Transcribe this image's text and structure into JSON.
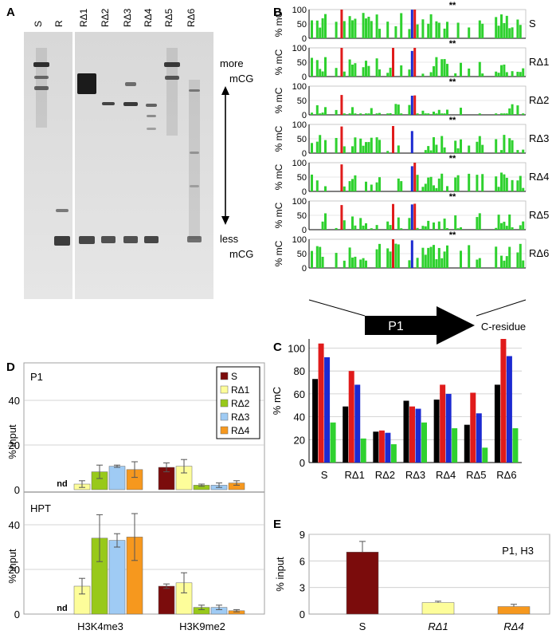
{
  "panel_labels": {
    "a": "A",
    "b": "B",
    "c": "C",
    "d": "D",
    "e": "E"
  },
  "gel": {
    "lanes": [
      "S",
      "R",
      "RΔ1",
      "RΔ2",
      "RΔ3",
      "RΔ4",
      "RΔ5",
      "RΔ6"
    ],
    "label_more": "more",
    "label_more_sub": "mCG",
    "label_less": "less",
    "label_less_sub": "mCG"
  },
  "methylation_profiles": {
    "ytick_labels": [
      "100",
      "50",
      "0"
    ],
    "ylabel": "% mC",
    "marker": "**",
    "rows": [
      "S",
      "RΔ1",
      "RΔ2",
      "RΔ3",
      "RΔ4",
      "RΔ5",
      "RΔ6"
    ],
    "promoter_label": "P1",
    "xlabel": "C-residue",
    "colors": {
      "CG": "#e01b1b",
      "CHG": "#1c2ad1",
      "CHH": "#2fd12f"
    }
  },
  "chart_data": [
    {
      "id": "C",
      "type": "bar",
      "categories": [
        "S",
        "RΔ1",
        "RΔ2",
        "RΔ3",
        "RΔ4",
        "RΔ5",
        "RΔ6"
      ],
      "series": [
        {
          "color": "#000000",
          "values": [
            73,
            49,
            27,
            54,
            55,
            33,
            68
          ]
        },
        {
          "color": "#e01b1b",
          "values": [
            104,
            80,
            28,
            49,
            68,
            61,
            108
          ]
        },
        {
          "color": "#1c2ad1",
          "values": [
            92,
            68,
            26,
            47,
            60,
            43,
            93
          ]
        },
        {
          "color": "#2fd12f",
          "values": [
            35,
            21,
            16,
            35,
            30,
            13,
            30
          ]
        }
      ],
      "ylabel": "% mC",
      "ylim": [
        0,
        108
      ],
      "yticks": [
        0,
        20,
        40,
        60,
        80,
        100
      ],
      "grid": true
    },
    {
      "id": "D-P1",
      "type": "bar",
      "panel_title": "P1",
      "categories": [
        "H3K4me3",
        "H3K9me2"
      ],
      "series": [
        {
          "name": "S",
          "color": "#7b0c0c",
          "values": [
            0,
            10
          ],
          "errors": [
            0,
            2
          ]
        },
        {
          "name": "RΔ1",
          "color": "#fdfd9a",
          "values": [
            2.5,
            10.5
          ],
          "errors": [
            1.5,
            3
          ]
        },
        {
          "name": "RΔ2",
          "color": "#98c91a",
          "values": [
            8,
            2
          ],
          "errors": [
            3,
            0.5
          ]
        },
        {
          "name": "RΔ3",
          "color": "#9fcbf4",
          "values": [
            10.5,
            2
          ],
          "errors": [
            0.5,
            1
          ]
        },
        {
          "name": "RΔ4",
          "color": "#f6981e",
          "values": [
            9,
            3
          ],
          "errors": [
            3.5,
            1
          ]
        }
      ],
      "annotation": "nd",
      "ylabel": "% input",
      "ylim": [
        0,
        50
      ],
      "yticks": [
        0,
        20,
        40
      ],
      "grid": true,
      "legend": "top-right"
    },
    {
      "id": "D-HPT",
      "type": "bar",
      "panel_title": "HPT",
      "categories": [
        "H3K4me3",
        "H3K9me2"
      ],
      "series": [
        {
          "name": "S",
          "color": "#7b0c0c",
          "values": [
            0,
            12.5
          ],
          "errors": [
            0,
            1
          ]
        },
        {
          "name": "RΔ1",
          "color": "#fdfd9a",
          "values": [
            12.5,
            14
          ],
          "errors": [
            3.5,
            4.5
          ]
        },
        {
          "name": "RΔ2",
          "color": "#98c91a",
          "values": [
            34,
            3
          ],
          "errors": [
            10.5,
            1
          ]
        },
        {
          "name": "RΔ3",
          "color": "#9fcbf4",
          "values": [
            33,
            3
          ],
          "errors": [
            3,
            1
          ]
        },
        {
          "name": "RΔ4",
          "color": "#f6981e",
          "values": [
            34.5,
            1.5
          ],
          "errors": [
            10.5,
            0.5
          ]
        }
      ],
      "annotation": "nd",
      "ylabel": "% input",
      "ylim": [
        0,
        50
      ],
      "yticks": [
        0,
        20,
        40
      ],
      "grid": true
    },
    {
      "id": "E",
      "type": "bar",
      "panel_title": "P1, H3",
      "categories": [
        "S",
        "RΔ1",
        "RΔ4"
      ],
      "colors": [
        "#7b0c0c",
        "#fdfd9a",
        "#f6981e"
      ],
      "values": [
        7.0,
        1.3,
        0.85
      ],
      "errors": [
        1.2,
        0.15,
        0.25
      ],
      "ylabel": "% input",
      "ylim": [
        0,
        9
      ],
      "yticks": [
        0,
        3,
        6,
        9
      ],
      "grid": true
    }
  ]
}
